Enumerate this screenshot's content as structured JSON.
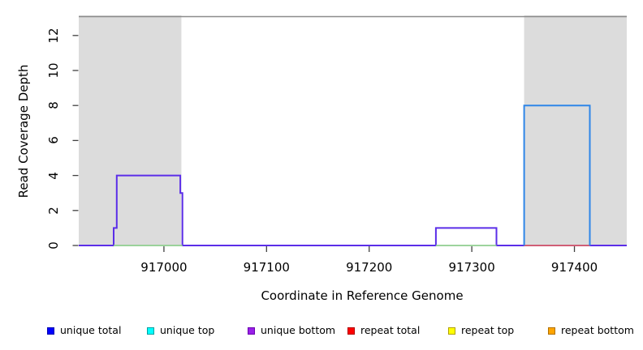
{
  "figure": {
    "background": "#FFFFFF",
    "top_border_color": "#8C8C8C",
    "shade_color": "#DCDCDC",
    "tick_color": "#404040"
  },
  "chart_data": {
    "type": "line",
    "subtype": "step-coverage",
    "title": "",
    "xlabel": "Coordinate in Reference Genome",
    "ylabel": "Read Coverage Depth",
    "xlim": [
      916917,
      917451
    ],
    "ylim": [
      0,
      13.1
    ],
    "xticks": [
      917000,
      917100,
      917200,
      917300,
      917400
    ],
    "yticks": [
      0,
      2,
      4,
      6,
      8,
      10,
      12
    ],
    "grid": false,
    "shaded_repeat_regions": [
      {
        "start": 916917,
        "end": 917017
      },
      {
        "start": 917351,
        "end": 917451
      }
    ],
    "series": [
      {
        "name": "unique bottom",
        "color": "#5B2EE8",
        "width": 2,
        "paths": [
          [
            [
              916917,
              0
            ],
            [
              916951,
              0
            ],
            [
              916951,
              1
            ],
            [
              916954,
              1
            ],
            [
              916954,
              4
            ],
            [
              917016,
              4
            ],
            [
              917016,
              3
            ],
            [
              917018,
              3
            ],
            [
              917018,
              0
            ],
            [
              917265,
              0
            ],
            [
              917265,
              1
            ],
            [
              917324,
              1
            ],
            [
              917324,
              0
            ],
            [
              917451,
              0
            ]
          ]
        ]
      },
      {
        "name": "unique top",
        "color": "#8FCE8F",
        "width": 1.8,
        "paths": [
          [
            [
              916951,
              0
            ],
            [
              917018,
              0
            ]
          ],
          [
            [
              917265,
              0
            ],
            [
              917324,
              0
            ]
          ]
        ]
      },
      {
        "name": "repeat total",
        "color": "#E06666",
        "width": 1.8,
        "paths": [
          [
            [
              917351,
              0
            ],
            [
              917415,
              0
            ]
          ]
        ]
      },
      {
        "name": "unique total",
        "color": "#2E86E8",
        "width": 2,
        "paths": [
          [
            [
              917351,
              0
            ],
            [
              917351,
              8
            ],
            [
              917415,
              8
            ],
            [
              917415,
              0
            ]
          ]
        ]
      }
    ],
    "legend": {
      "position": "bottom",
      "items": [
        {
          "label": "unique total",
          "fill": "#0000FF",
          "border": "#0000B0"
        },
        {
          "label": "unique top",
          "fill": "#00FFFF",
          "border": "#00A0A0"
        },
        {
          "label": "unique bottom",
          "fill": "#9920E8",
          "border": "#6A00B0"
        },
        {
          "label": "repeat total",
          "fill": "#FF0000",
          "border": "#B00000"
        },
        {
          "label": "repeat top",
          "fill": "#FFFF00",
          "border": "#B0A000"
        },
        {
          "label": "repeat bottom",
          "fill": "#FFA500",
          "border": "#B07000"
        }
      ]
    }
  }
}
